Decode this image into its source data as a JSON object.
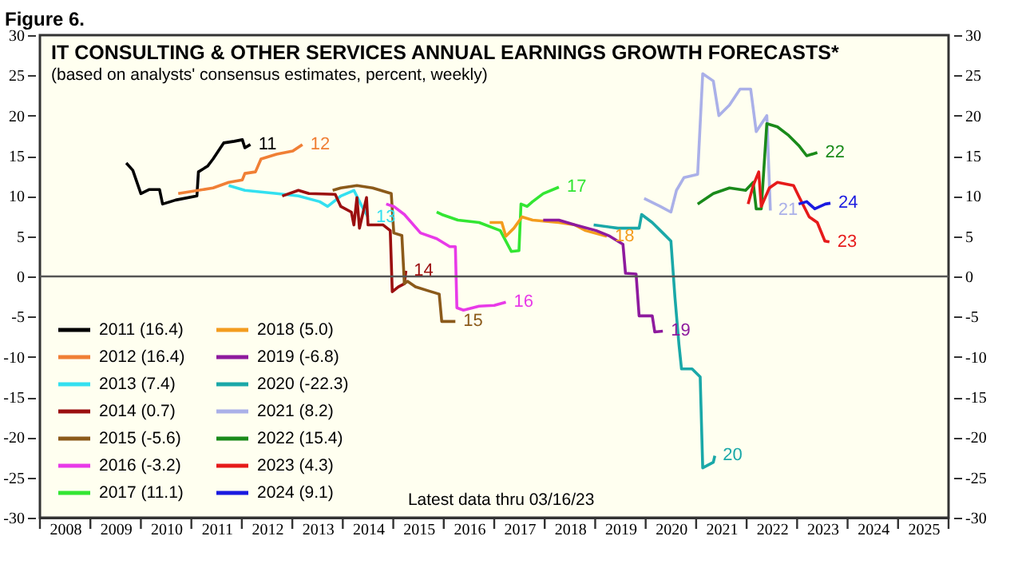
{
  "chart_data": {
    "type": "line",
    "title": "IT CONSULTING & OTHER SERVICES ANNUAL EARNINGS GROWTH FORECASTS*",
    "subtitle": "(based on analysts' consensus estimates, percent, weekly)",
    "xlim": [
      2008,
      2026
    ],
    "xticks": [
      {
        "value": 2008,
        "label": null
      },
      {
        "value": 2008.5,
        "label": "2008"
      },
      {
        "value": 2009,
        "label": null
      },
      {
        "value": 2009.5,
        "label": "2009"
      },
      {
        "value": 2010,
        "label": null
      },
      {
        "value": 2010.5,
        "label": "2010"
      },
      {
        "value": 2011,
        "label": null
      },
      {
        "value": 2011.5,
        "label": "2011"
      },
      {
        "value": 2012,
        "label": null
      },
      {
        "value": 2012.5,
        "label": "2012"
      },
      {
        "value": 2013,
        "label": null
      },
      {
        "value": 2013.5,
        "label": "2013"
      },
      {
        "value": 2014,
        "label": null
      },
      {
        "value": 2014.5,
        "label": "2014"
      },
      {
        "value": 2015,
        "label": null
      },
      {
        "value": 2015.5,
        "label": "2015"
      },
      {
        "value": 2016,
        "label": null
      },
      {
        "value": 2016.5,
        "label": "2016"
      },
      {
        "value": 2017,
        "label": null
      },
      {
        "value": 2017.5,
        "label": "2017"
      },
      {
        "value": 2018,
        "label": null
      },
      {
        "value": 2018.5,
        "label": "2018"
      },
      {
        "value": 2019,
        "label": null
      },
      {
        "value": 2019.5,
        "label": "2019"
      },
      {
        "value": 2020,
        "label": null
      },
      {
        "value": 2020.5,
        "label": "2020"
      },
      {
        "value": 2021,
        "label": null
      },
      {
        "value": 2021.5,
        "label": "2021"
      },
      {
        "value": 2022,
        "label": null
      },
      {
        "value": 2022.5,
        "label": "2022"
      },
      {
        "value": 2023,
        "label": null
      },
      {
        "value": 2023.5,
        "label": "2023"
      },
      {
        "value": 2024,
        "label": null
      },
      {
        "value": 2024.5,
        "label": "2024"
      },
      {
        "value": 2025,
        "label": null
      },
      {
        "value": 2025.5,
        "label": "2025"
      },
      {
        "value": 2026,
        "label": null
      }
    ],
    "ylim": [
      -30,
      30
    ],
    "yticks": [
      -30,
      -25,
      -20,
      -15,
      -10,
      -5,
      0,
      5,
      10,
      15,
      20,
      25,
      30
    ],
    "y2lim": [
      -30,
      30
    ],
    "y2ticks": [
      -30,
      -25,
      -20,
      -15,
      -10,
      -5,
      0,
      5,
      10,
      15,
      20,
      25,
      30
    ],
    "grid": false,
    "legend": "bottom left",
    "line_style": "solid",
    "marker": "none",
    "ref_lines": [
      {
        "axis": "y",
        "value": 0,
        "color": "#555555"
      }
    ],
    "series": [
      {
        "name": "2011 (16.4)",
        "color": "#000000",
        "x": [
          2009.71,
          2009.84,
          2010.0,
          2010.16,
          2010.37,
          2010.43,
          2010.69,
          2011.11,
          2011.14,
          2011.32,
          2011.43,
          2011.64,
          2011.85,
          2012.01,
          2012.06,
          2012.17
        ],
        "values": [
          14.1,
          13.2,
          10.3,
          10.8,
          10.8,
          9.0,
          9.5,
          10.0,
          13.0,
          13.7,
          14.6,
          16.6,
          16.8,
          17.0,
          16.0,
          16.4
        ]
      },
      {
        "name": "2012 (16.4)",
        "color": "#f07f35",
        "x": [
          2010.74,
          2011.43,
          2011.74,
          2012.01,
          2012.06,
          2012.27,
          2012.38,
          2012.69,
          2013.01,
          2013.2
        ],
        "values": [
          10.3,
          11.0,
          11.7,
          12.0,
          12.8,
          13.0,
          14.6,
          15.2,
          15.6,
          16.4
        ]
      },
      {
        "name": "2013 (7.4)",
        "color": "#33e0f0",
        "x": [
          2011.74,
          2012.06,
          2012.69,
          2013.12,
          2013.54,
          2013.7,
          2013.96,
          2014.22,
          2014.38,
          2014.5
        ],
        "values": [
          11.3,
          10.7,
          10.3,
          10.0,
          9.3,
          8.7,
          10.0,
          10.7,
          8.7,
          7.4
        ]
      },
      {
        "name": "2014 (0.7)",
        "color": "#9b0f0f",
        "x": [
          2012.8,
          2013.12,
          2013.33,
          2013.85,
          2013.96,
          2014.17,
          2014.22,
          2014.28,
          2014.33,
          2014.47,
          2014.5,
          2014.8,
          2014.94,
          2014.98,
          2015.1,
          2015.22,
          2015.25
        ],
        "values": [
          10.0,
          10.7,
          10.3,
          10.2,
          8.7,
          8.0,
          6.4,
          9.8,
          6.0,
          9.8,
          6.4,
          6.4,
          5.7,
          -1.9,
          -1.3,
          -0.9,
          0.7
        ]
      },
      {
        "name": "2015 (-5.6)",
        "color": "#8b5a1a",
        "x": [
          2013.8,
          2013.96,
          2014.28,
          2014.59,
          2014.96,
          2015.01,
          2015.17,
          2015.22,
          2015.28,
          2015.44,
          2015.7,
          2015.91,
          2015.96,
          2016.23
        ],
        "values": [
          10.7,
          11.0,
          11.3,
          11.0,
          10.3,
          5.4,
          5.1,
          -0.9,
          -0.6,
          -1.3,
          -1.8,
          -2.2,
          -5.6,
          -5.6
        ]
      },
      {
        "name": "2016 (-3.2)",
        "color": "#e83ae8",
        "x": [
          2014.86,
          2015.01,
          2015.22,
          2015.54,
          2015.86,
          2016.12,
          2016.23,
          2016.26,
          2016.39,
          2016.7,
          2017.0,
          2017.23
        ],
        "values": [
          9.0,
          8.7,
          7.7,
          5.4,
          4.7,
          3.7,
          3.7,
          -3.9,
          -4.2,
          -3.7,
          -3.6,
          -3.2
        ]
      },
      {
        "name": "2017 (11.1)",
        "color": "#33e633",
        "x": [
          2015.86,
          2015.96,
          2016.28,
          2016.7,
          2017.12,
          2017.34,
          2017.49,
          2017.53,
          2017.65,
          2017.76,
          2017.97,
          2018.28
        ],
        "values": [
          8.0,
          7.7,
          7.0,
          6.7,
          5.7,
          3.1,
          3.2,
          9.0,
          8.7,
          9.3,
          10.3,
          11.1
        ]
      },
      {
        "name": "2018 (5.0)",
        "color": "#f39c1e",
        "x": [
          2016.91,
          2017.15,
          2017.23,
          2017.39,
          2017.55,
          2017.76,
          2018.28,
          2018.6,
          2018.81,
          2019.23
        ],
        "values": [
          6.7,
          6.7,
          5.0,
          6.0,
          7.4,
          7.0,
          6.7,
          6.4,
          5.7,
          5.0
        ]
      },
      {
        "name": "2019 (-6.8)",
        "color": "#8e1a9e",
        "x": [
          2017.97,
          2018.28,
          2018.6,
          2019.02,
          2019.29,
          2019.55,
          2019.6,
          2019.81,
          2019.87,
          2020.13,
          2020.18,
          2020.34
        ],
        "values": [
          7.0,
          7.0,
          6.4,
          5.7,
          5.0,
          4.0,
          0.4,
          0.3,
          -4.9,
          -4.9,
          -6.9,
          -6.8
        ]
      },
      {
        "name": "2020 (-22.3)",
        "color": "#1aa8a8",
        "x": [
          2018.97,
          2019.45,
          2019.87,
          2019.92,
          2020.13,
          2020.34,
          2020.5,
          2020.58,
          2020.66,
          2020.71,
          2020.92,
          2021.08,
          2021.13,
          2021.34,
          2021.37
        ],
        "values": [
          6.4,
          6.0,
          6.0,
          7.7,
          6.7,
          5.4,
          4.4,
          -2.6,
          -8.5,
          -11.5,
          -11.5,
          -12.5,
          -23.8,
          -23.1,
          -22.3
        ]
      },
      {
        "name": "2021 (8.2)",
        "color": "#aab0e8",
        "x": [
          2019.97,
          2020.29,
          2020.5,
          2020.61,
          2020.76,
          2021.03,
          2021.13,
          2021.34,
          2021.45,
          2021.66,
          2021.87,
          2022.08,
          2022.19,
          2022.4,
          2022.47
        ],
        "values": [
          9.7,
          8.7,
          8.0,
          10.7,
          12.3,
          12.7,
          25.2,
          24.3,
          20.0,
          21.3,
          23.3,
          23.3,
          18.0,
          20.0,
          8.2
        ]
      },
      {
        "name": "2022 (15.4)",
        "color": "#1a8a1a",
        "x": [
          2021.03,
          2021.34,
          2021.66,
          2021.98,
          2022.13,
          2022.19,
          2022.29,
          2022.4,
          2022.61,
          2022.82,
          2023.03,
          2023.19,
          2023.4
        ],
        "values": [
          9.0,
          10.3,
          11.0,
          10.7,
          11.7,
          8.4,
          8.4,
          19.0,
          18.6,
          17.6,
          16.3,
          15.0,
          15.4
        ]
      },
      {
        "name": "2023 (4.3)",
        "color": "#e61a1a",
        "x": [
          2022.03,
          2022.13,
          2022.24,
          2022.29,
          2022.45,
          2022.61,
          2022.93,
          2023.03,
          2023.24,
          2023.4,
          2023.55,
          2023.64
        ],
        "values": [
          9.0,
          11.3,
          13.0,
          8.7,
          11.0,
          11.7,
          11.3,
          10.0,
          7.4,
          6.7,
          4.4,
          4.3
        ]
      },
      {
        "name": "2024 (9.1)",
        "color": "#1a1ae0",
        "x": [
          2023.03,
          2023.19,
          2023.35,
          2023.56,
          2023.66
        ],
        "values": [
          9.0,
          9.3,
          8.4,
          9.0,
          9.1
        ]
      }
    ],
    "annotations": [
      {
        "text": "11",
        "x": 2012.17,
        "y": 16.4
      },
      {
        "text": "12",
        "x": 2013.2,
        "y": 16.4
      },
      {
        "text": "13",
        "x": 2014.5,
        "y": 7.4
      },
      {
        "text": "14",
        "x": 2015.25,
        "y": 0.7
      },
      {
        "text": "15",
        "x": 2016.23,
        "y": -5.6
      },
      {
        "text": "16",
        "x": 2017.23,
        "y": -3.2
      },
      {
        "text": "17",
        "x": 2018.28,
        "y": 11.1
      },
      {
        "text": "18",
        "x": 2019.23,
        "y": 5.0
      },
      {
        "text": "19",
        "x": 2020.34,
        "y": -6.8
      },
      {
        "text": "20",
        "x": 2021.37,
        "y": -22.3
      },
      {
        "text": "21",
        "x": 2022.47,
        "y": 8.2
      },
      {
        "text": "22",
        "x": 2023.4,
        "y": 15.4
      },
      {
        "text": "23",
        "x": 2023.64,
        "y": 4.3
      },
      {
        "text": "24",
        "x": 2023.66,
        "y": 9.1
      },
      "Figure 6.",
      "Latest data thru 03/16/23"
    ]
  }
}
